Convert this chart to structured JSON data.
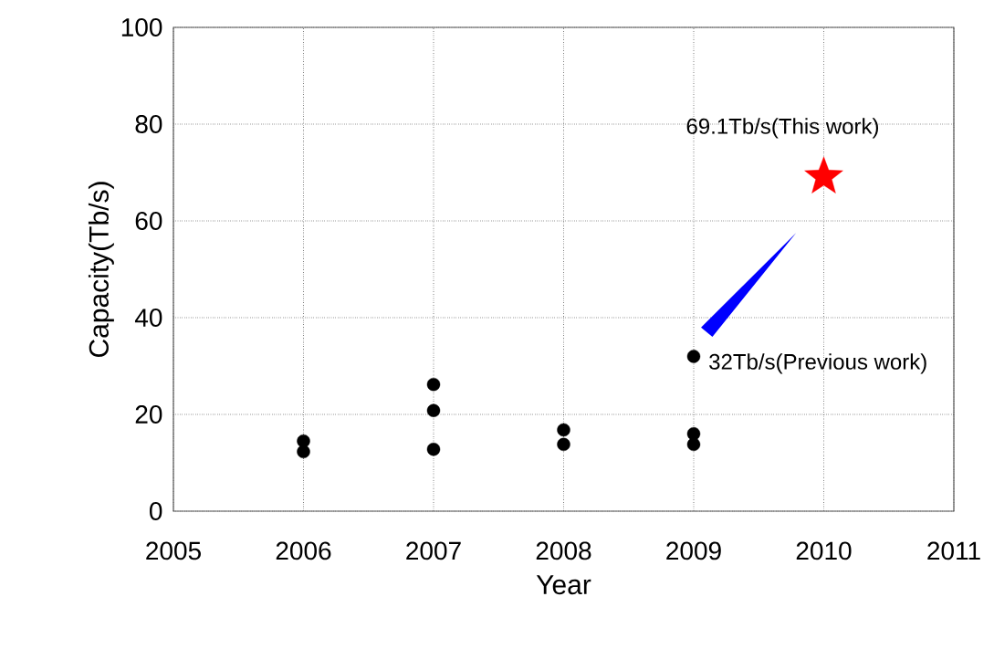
{
  "chart_data": {
    "type": "scatter",
    "xlabel": "Year",
    "ylabel": "Capacity(Tb/s)",
    "xlim": [
      2005,
      2011
    ],
    "xticks": [
      2005,
      2006,
      2007,
      2008,
      2009,
      2010,
      2011
    ],
    "ylim": [
      0,
      100
    ],
    "yticks": [
      0,
      20,
      40,
      60,
      80,
      100
    ],
    "grid": true,
    "series": [
      {
        "marker": "circle",
        "color": "#000000",
        "x": [
          2006,
          2006,
          2007,
          2007,
          2007,
          2008,
          2008,
          2009,
          2009,
          2009
        ],
        "values": [
          14.5,
          12.3,
          26.2,
          20.8,
          12.8,
          16.8,
          13.8,
          32,
          16.0,
          13.8
        ]
      },
      {
        "marker": "star",
        "color": "#ff0000",
        "x": [
          2010
        ],
        "values": [
          69.1
        ]
      }
    ],
    "annotations": [
      {
        "text": "69.1Tb/s(This work)",
        "x": 2010,
        "y": 69.1
      },
      {
        "text": "32Tb/s(Previous work)",
        "x": 2009,
        "y": 32
      }
    ]
  }
}
